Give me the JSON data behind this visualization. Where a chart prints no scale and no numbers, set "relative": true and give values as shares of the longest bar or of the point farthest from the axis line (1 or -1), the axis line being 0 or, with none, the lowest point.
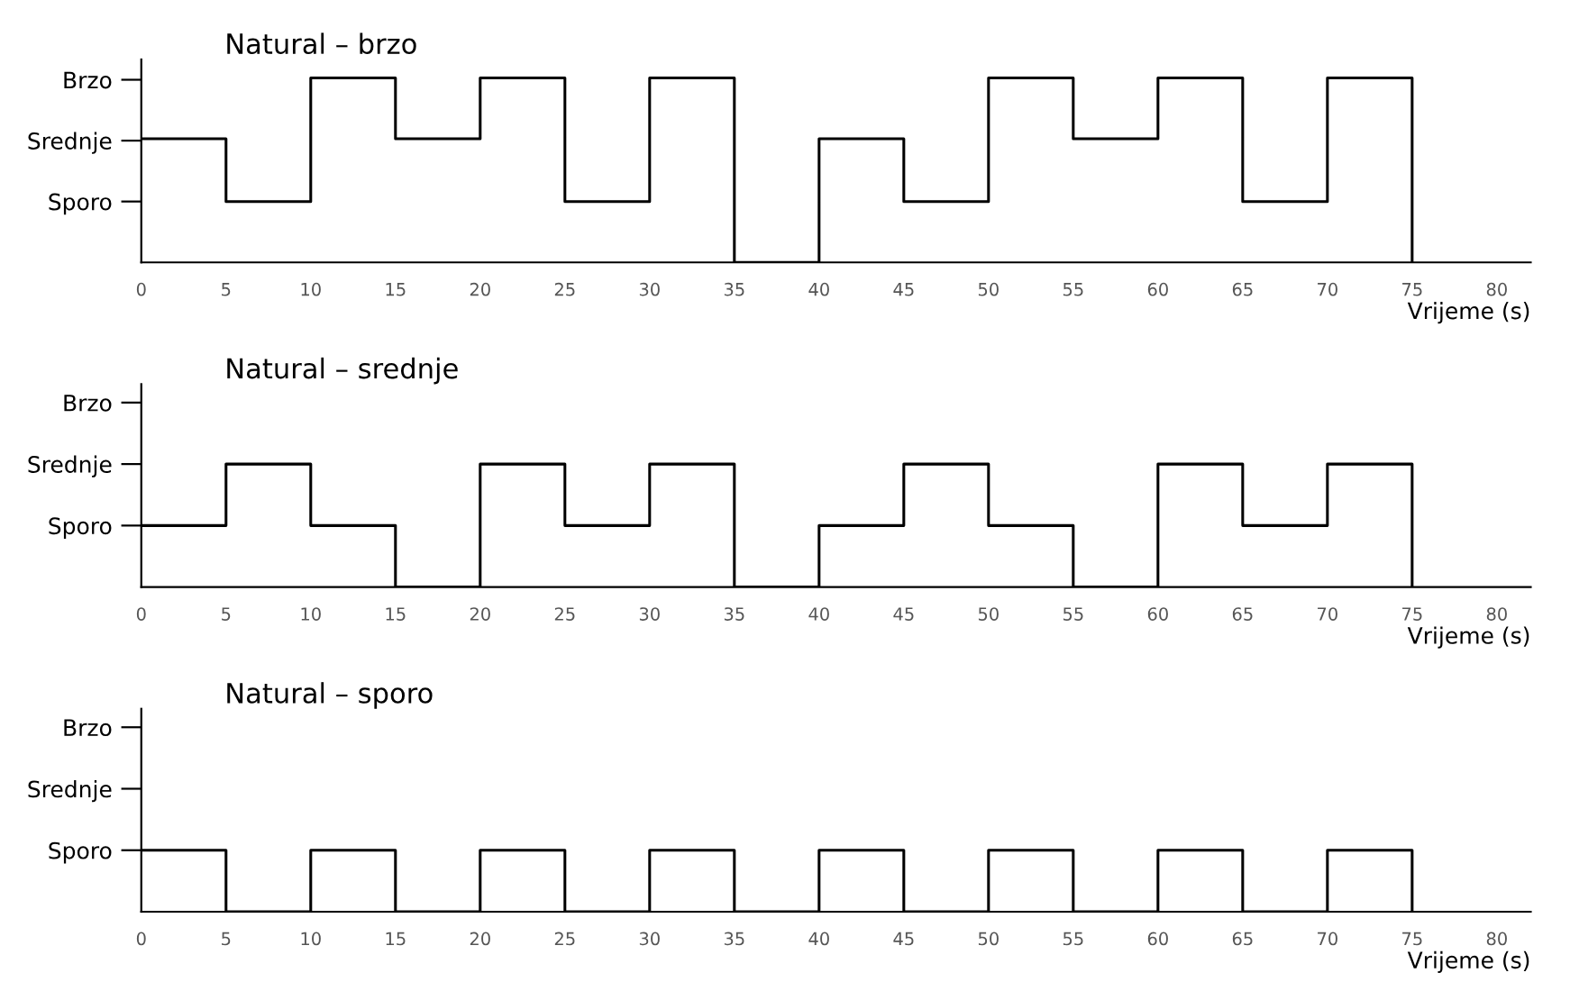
{
  "chart_data": [
    {
      "type": "step",
      "relative": true,
      "title": "Natural – brzo",
      "xlabel": "Vrijeme (s)",
      "x": [
        0,
        5,
        10,
        15,
        20,
        25,
        30,
        35,
        40,
        45,
        50,
        55,
        60,
        65,
        70,
        75
      ],
      "series": [
        {
          "color": "#000000",
          "values": [
            0.67,
            0.33,
            1,
            0.67,
            1,
            0.33,
            1,
            0,
            0.67,
            0.33,
            1,
            0.67,
            1,
            0.33,
            1,
            0
          ]
        }
      ],
      "xlim": [
        0,
        82
      ],
      "xticks": [
        0,
        5,
        10,
        15,
        20,
        25,
        30,
        35,
        40,
        45,
        50,
        55,
        60,
        65,
        70,
        75,
        80
      ],
      "annotations": [
        "Sporo",
        "Srednje",
        "Brzo"
      ],
      "grid": false,
      "marker": "none",
      "line_style": "solid"
    },
    {
      "type": "step",
      "relative": true,
      "title": "Natural – srednje",
      "xlabel": "Vrijeme (s)",
      "x": [
        0,
        5,
        10,
        15,
        20,
        25,
        30,
        35,
        40,
        45,
        50,
        55,
        60,
        65,
        70,
        75
      ],
      "series": [
        {
          "color": "#000000",
          "values": [
            0.5,
            1,
            0.5,
            0,
            1,
            0.5,
            1,
            0,
            0.5,
            1,
            0.5,
            0,
            1,
            0.5,
            1,
            0
          ]
        }
      ],
      "xlim": [
        0,
        82
      ],
      "xticks": [
        0,
        5,
        10,
        15,
        20,
        25,
        30,
        35,
        40,
        45,
        50,
        55,
        60,
        65,
        70,
        75,
        80
      ],
      "annotations": [
        "Sporo",
        "Srednje",
        "Brzo"
      ],
      "grid": false,
      "marker": "none",
      "line_style": "solid"
    },
    {
      "type": "step",
      "relative": true,
      "title": "Natural – sporo",
      "xlabel": "Vrijeme (s)",
      "x": [
        0,
        5,
        10,
        15,
        20,
        25,
        30,
        35,
        40,
        45,
        50,
        55,
        60,
        65,
        70,
        75
      ],
      "series": [
        {
          "color": "#000000",
          "values": [
            1,
            0,
            1,
            0,
            1,
            0,
            1,
            0,
            1,
            0,
            1,
            0,
            1,
            0,
            1,
            0
          ]
        }
      ],
      "xlim": [
        0,
        82
      ],
      "xticks": [
        0,
        5,
        10,
        15,
        20,
        25,
        30,
        35,
        40,
        45,
        50,
        55,
        60,
        65,
        70,
        75,
        80
      ],
      "annotations": [
        "Sporo",
        "Srednje",
        "Brzo"
      ],
      "grid": false,
      "marker": "none",
      "line_style": "solid"
    }
  ]
}
